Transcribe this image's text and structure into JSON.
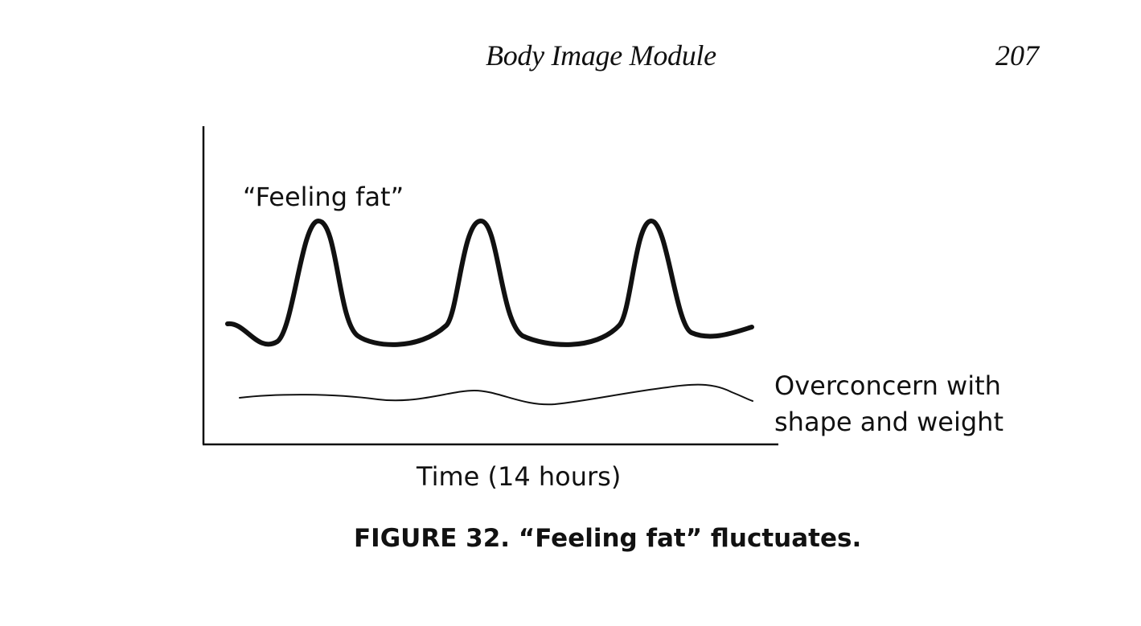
{
  "running_head": {
    "title": "Body Image Module",
    "page_number": "207"
  },
  "figure": {
    "caption": "FIGURE 32. “Feeling fat” fluctuates.",
    "colors": {
      "ink": "#111111",
      "background": "#ffffff"
    }
  },
  "chart_data": {
    "type": "line",
    "title": "",
    "xlabel": "Time (14 hours)",
    "ylabel": "",
    "grid": false,
    "legend": "none",
    "series": [
      {
        "name": "“Feeling fat”",
        "style": "thick",
        "description_of_shape": "three sharp peaks rising from a low baseline",
        "x": [
          0,
          1,
          2,
          3,
          4,
          5,
          6,
          7,
          8,
          9,
          10,
          11,
          12,
          13,
          14
        ],
        "values": [
          0.25,
          0.2,
          0.95,
          0.22,
          0.18,
          0.2,
          0.95,
          0.2,
          0.18,
          0.2,
          0.95,
          0.22,
          0.22,
          0.25,
          0.27
        ]
      },
      {
        "name": "Overconcern with shape and weight",
        "style": "thin",
        "description_of_shape": "low, nearly flat line with gentle undulation",
        "x": [
          0,
          1,
          2,
          3,
          4,
          5,
          6,
          7,
          8,
          9,
          10,
          11,
          12,
          13,
          14
        ],
        "values": [
          0.05,
          0.06,
          0.06,
          0.05,
          0.04,
          0.06,
          0.07,
          0.04,
          0.03,
          0.05,
          0.07,
          0.08,
          0.09,
          0.06,
          0.02
        ]
      }
    ],
    "series_labels": {
      "feeling_fat": "“Feeling fat”",
      "overconcern_line1": "Overconcern with",
      "overconcern_line2": "shape and weight"
    }
  }
}
